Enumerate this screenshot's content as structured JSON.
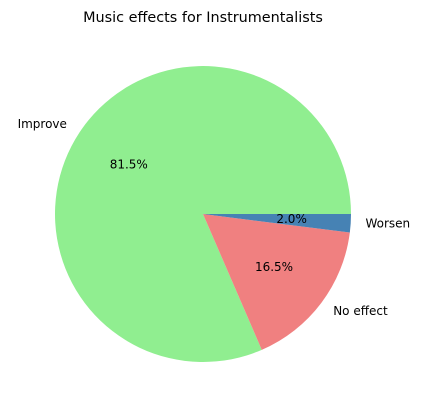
{
  "chart_data": {
    "type": "pie",
    "title": "Music effects for Instrumentalists",
    "slices": [
      {
        "label": "Improve",
        "value": 81.5,
        "pct_label": "81.5%",
        "color": "#90ee90"
      },
      {
        "label": "No effect",
        "value": 16.5,
        "pct_label": "16.5%",
        "color": "#f08080"
      },
      {
        "label": "Worsen",
        "value": 2.0,
        "pct_label": "2.0%",
        "color": "#4682b4"
      }
    ]
  }
}
